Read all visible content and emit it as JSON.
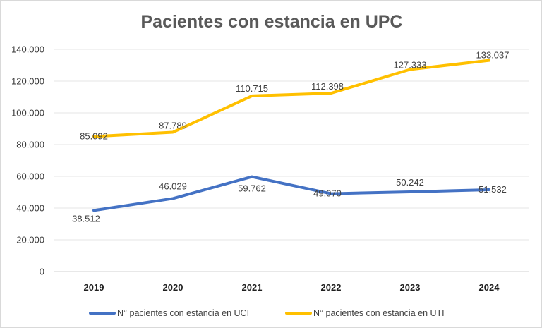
{
  "chart_data": {
    "type": "line",
    "title": "Pacientes con estancia en UPC",
    "categories": [
      "2019",
      "2020",
      "2021",
      "2022",
      "2023",
      "2024"
    ],
    "ylim": [
      0,
      140000
    ],
    "yticks": [
      0,
      20000,
      40000,
      60000,
      80000,
      100000,
      120000,
      140000
    ],
    "ytick_labels": [
      "0",
      "20.000",
      "40.000",
      "60.000",
      "80.000",
      "100.000",
      "120.000",
      "140.000"
    ],
    "grid": true,
    "legend_position": "bottom",
    "series": [
      {
        "name": "N° pacientes con estancia en UCI",
        "color": "#4472C4",
        "values": [
          38512,
          46029,
          59762,
          49070,
          50242,
          51532
        ],
        "labels": [
          "38.512",
          "46.029",
          "59.762",
          "49.070",
          "50.242",
          "51.532"
        ]
      },
      {
        "name": "N° pacientes con estancia en UTI",
        "color": "#FFC000",
        "values": [
          85092,
          87789,
          110715,
          112398,
          127333,
          133037
        ],
        "labels": [
          "85.092",
          "87.789",
          "110.715",
          "112.398",
          "127.333",
          "133.037"
        ]
      }
    ]
  }
}
